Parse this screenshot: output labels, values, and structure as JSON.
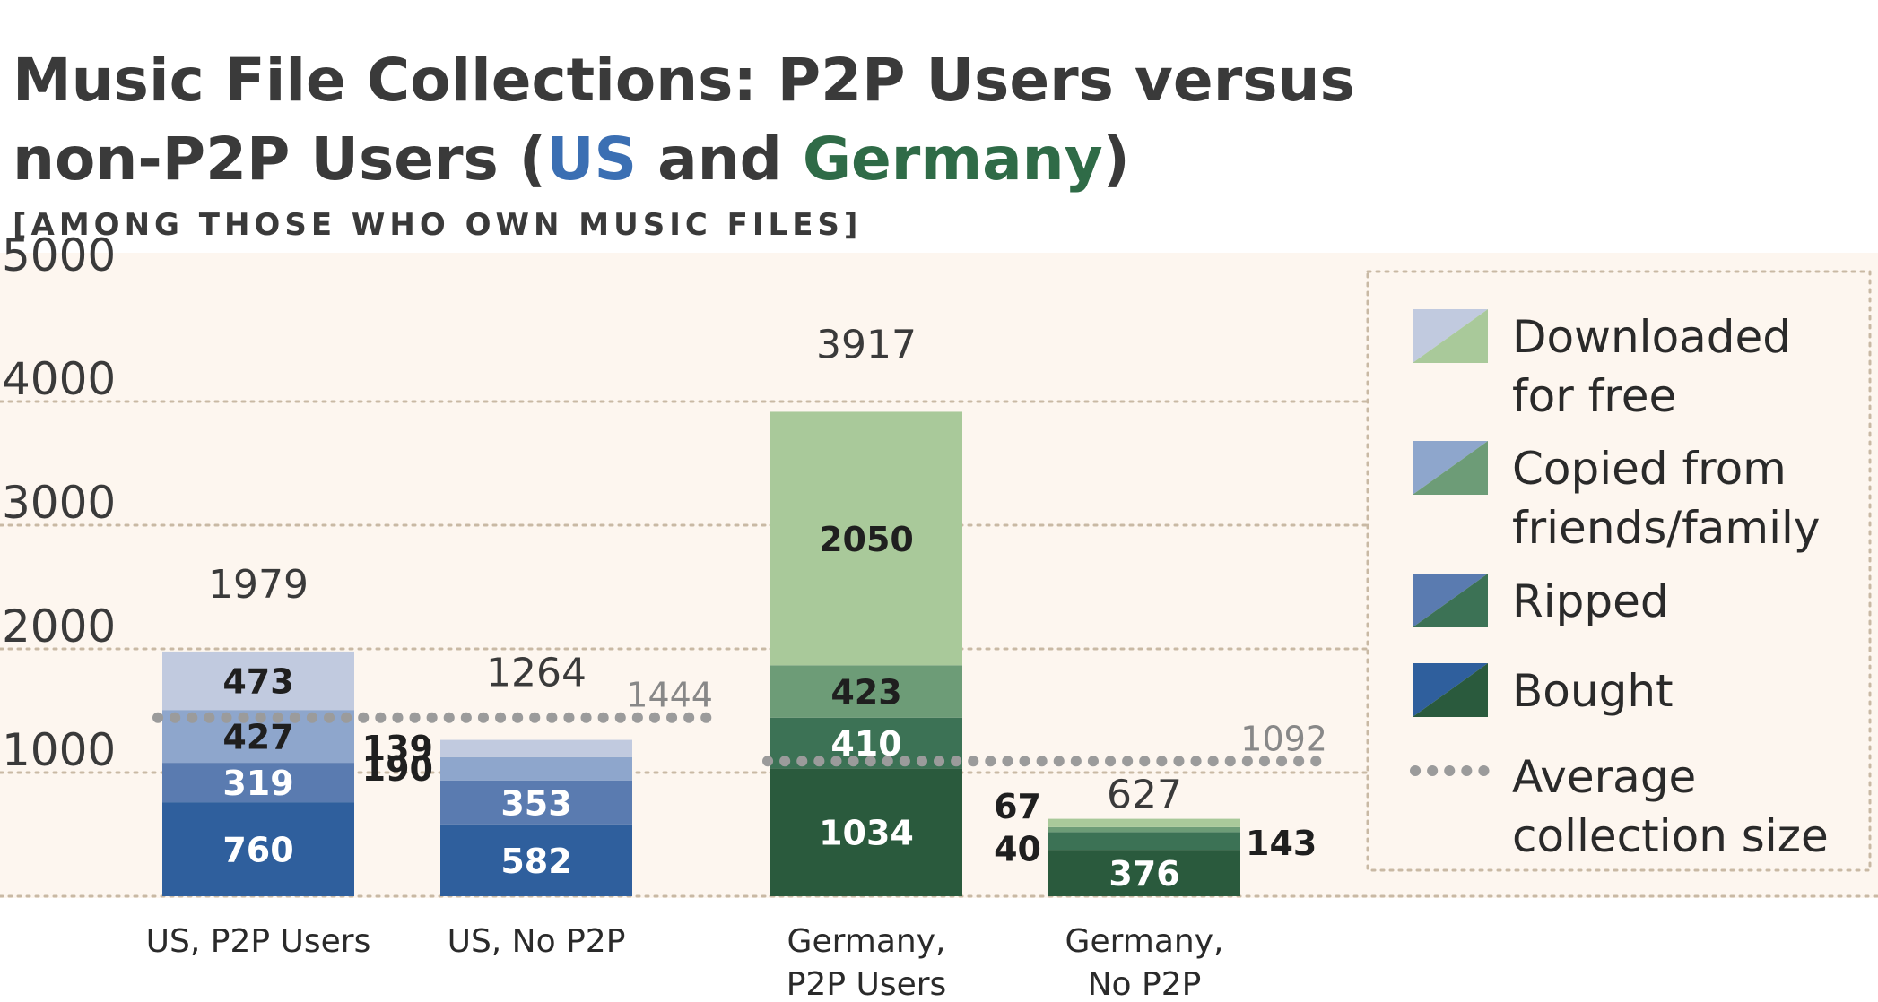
{
  "colors": {
    "background": "#fdf6ef",
    "grid": "#c9b9a4",
    "avg_line": "#9b9b9b",
    "us": [
      "#2f5f9d",
      "#5a7bb0",
      "#8ea6cc",
      "#c1cadf"
    ],
    "de": [
      "#2a5a3d",
      "#3c7255",
      "#6d9c77",
      "#a9c99a"
    ],
    "us_text_title": "#3b6fb3",
    "de_text_title": "#2f6b47"
  },
  "chart_data": {
    "type": "bar",
    "stacked": true,
    "title_parts": [
      "Music File Collections: P2P Users versus",
      "non-P2P Users (",
      "US",
      " and ",
      "Germany",
      ")"
    ],
    "subtitle": "[AMONG THOSE WHO OWN MUSIC FILES]",
    "categories": [
      "US, P2P Users",
      "US, No P2P",
      "Germany, P2P Users",
      "Germany, No P2P"
    ],
    "category_lines": [
      [
        "US, P2P Users"
      ],
      [
        "US, No P2P"
      ],
      [
        "Germany,",
        "P2P Users"
      ],
      [
        "Germany,",
        "No P2P"
      ]
    ],
    "series": [
      {
        "name": "Bought",
        "values": [
          760,
          582,
          1034,
          376
        ]
      },
      {
        "name": "Ripped",
        "values": [
          319,
          353,
          410,
          143
        ]
      },
      {
        "name": "Copied from friends/family",
        "values": [
          427,
          190,
          423,
          40
        ]
      },
      {
        "name": "Downloaded for free",
        "values": [
          473,
          139,
          2050,
          67
        ]
      }
    ],
    "totals": [
      1979,
      1264,
      3917,
      627
    ],
    "averages": [
      {
        "label": "1444",
        "value": 1444,
        "group": "US"
      },
      {
        "label": "1092",
        "value": 1092,
        "group": "Germany"
      }
    ],
    "ylim": [
      0,
      5000
    ],
    "yticks": [
      1000,
      2000,
      3000,
      4000,
      5000
    ],
    "ytick_labels": [
      "1000",
      "2000",
      "3000",
      "4000",
      "5000"
    ],
    "grid": true,
    "legend_position": "right",
    "legend": [
      {
        "lines": [
          "Downloaded",
          "for free"
        ]
      },
      {
        "lines": [
          "Copied from",
          "friends/family"
        ]
      },
      {
        "lines": [
          "Ripped"
        ]
      },
      {
        "lines": [
          "Bought"
        ]
      },
      {
        "lines": [
          "Average",
          "collection size"
        ]
      }
    ]
  }
}
